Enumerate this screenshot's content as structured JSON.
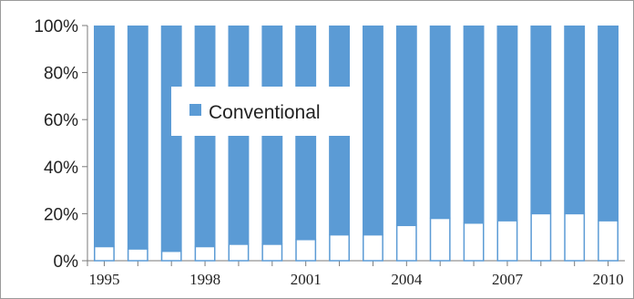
{
  "chart_data": {
    "type": "bar",
    "stacked": true,
    "orientation": "vertical",
    "categories": [
      "1995",
      "1996",
      "1997",
      "1998",
      "1999",
      "2000",
      "2001",
      "2002",
      "2003",
      "2004",
      "2005",
      "2006",
      "2007",
      "2008",
      "2009",
      "2010"
    ],
    "x_tick_labels": [
      "1995",
      "1998",
      "2001",
      "2004",
      "2007",
      "2010"
    ],
    "series": [
      {
        "name": "",
        "color": "#ffffff",
        "edgecolor": "#5b9bd5",
        "values": [
          6,
          5,
          4,
          6,
          7,
          7,
          9,
          11,
          11,
          15,
          18,
          16,
          17,
          20,
          20,
          17
        ]
      },
      {
        "name": "Conventional",
        "color": "#5b9bd5",
        "values": [
          94,
          95,
          96,
          94,
          93,
          93,
          91,
          89,
          89,
          85,
          82,
          84,
          83,
          80,
          80,
          83
        ]
      }
    ],
    "y_tick_labels": [
      "0%",
      "20%",
      "40%",
      "60%",
      "80%",
      "100%"
    ],
    "ylim": [
      0,
      100
    ],
    "y_unit": "%",
    "grid": false,
    "legend": {
      "placement": "upper-left-inside",
      "entries": [
        "Conventional"
      ]
    },
    "title": "",
    "xlabel": "",
    "ylabel": ""
  }
}
